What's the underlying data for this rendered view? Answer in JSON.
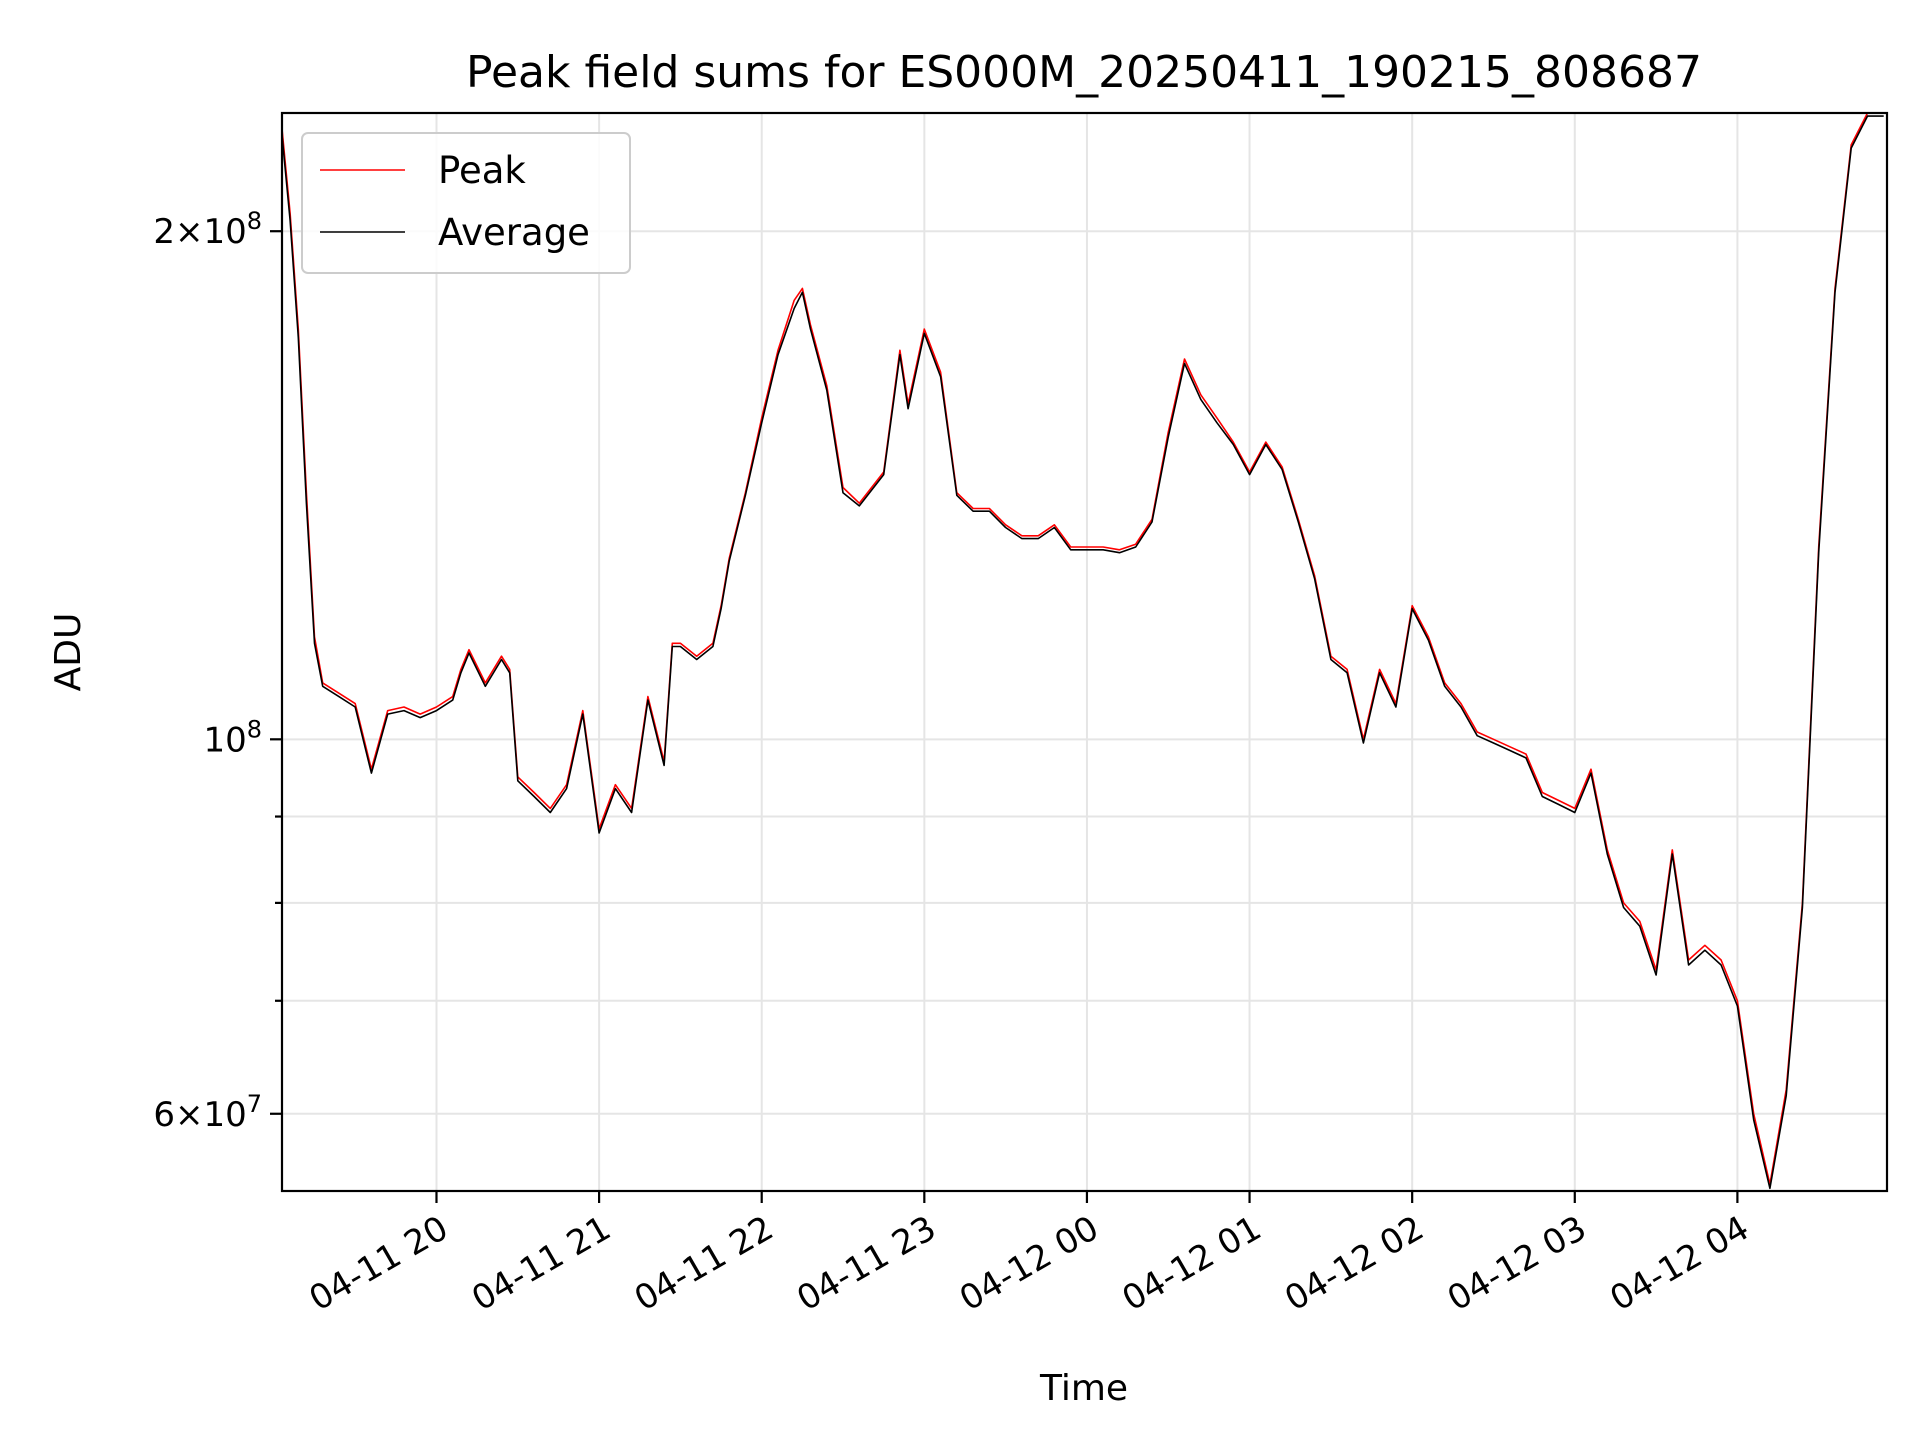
{
  "chart_data": {
    "type": "line",
    "title": "Peak field sums for ES000M_20250411_190215_808687",
    "xlabel": "Time",
    "ylabel": "ADU",
    "yscale": "log",
    "ylim": [
      54000000,
      235000000
    ],
    "xlim_hours": [
      19.05,
      28.92
    ],
    "x_ticks": [
      {
        "hour": 20,
        "label": "04-11 20"
      },
      {
        "hour": 21,
        "label": "04-11 21"
      },
      {
        "hour": 22,
        "label": "04-11 22"
      },
      {
        "hour": 23,
        "label": "04-11 23"
      },
      {
        "hour": 24,
        "label": "04-12 00"
      },
      {
        "hour": 25,
        "label": "04-12 01"
      },
      {
        "hour": 26,
        "label": "04-12 02"
      },
      {
        "hour": 27,
        "label": "04-12 03"
      },
      {
        "hour": 28,
        "label": "04-12 04"
      }
    ],
    "y_major_ticks": [
      {
        "value": 60000000,
        "base": "6",
        "exp": "7",
        "mult": true
      },
      {
        "value": 100000000,
        "base": "10",
        "exp": "8",
        "mult": false
      },
      {
        "value": 200000000,
        "base": "2",
        "exp": "8",
        "mult": true
      }
    ],
    "y_minor_ticks": [
      70000000,
      80000000,
      90000000
    ],
    "grid": true,
    "legend_position": "top-left",
    "x_hours": [
      19.05,
      19.1,
      19.15,
      19.2,
      19.25,
      19.3,
      19.4,
      19.5,
      19.6,
      19.7,
      19.8,
      19.9,
      20.0,
      20.1,
      20.15,
      20.2,
      20.3,
      20.4,
      20.45,
      20.5,
      20.6,
      20.7,
      20.8,
      20.9,
      21.0,
      21.1,
      21.2,
      21.3,
      21.4,
      21.45,
      21.5,
      21.6,
      21.7,
      21.75,
      21.8,
      21.9,
      22.0,
      22.1,
      22.2,
      22.25,
      22.3,
      22.4,
      22.5,
      22.6,
      22.75,
      22.85,
      22.9,
      23.0,
      23.1,
      23.2,
      23.3,
      23.4,
      23.5,
      23.6,
      23.7,
      23.8,
      23.9,
      24.0,
      24.1,
      24.2,
      24.3,
      24.4,
      24.5,
      24.6,
      24.7,
      24.8,
      24.9,
      25.0,
      25.1,
      25.2,
      25.3,
      25.4,
      25.5,
      25.6,
      25.7,
      25.8,
      25.9,
      26.0,
      26.1,
      26.2,
      26.3,
      26.4,
      26.5,
      26.6,
      26.7,
      26.8,
      26.9,
      27.0,
      27.1,
      27.2,
      27.3,
      27.4,
      27.5,
      27.6,
      27.7,
      27.8,
      27.9,
      28.0,
      28.1,
      28.2,
      28.3,
      28.4,
      28.5,
      28.6,
      28.7,
      28.8,
      28.9,
      28.92
    ],
    "series": [
      {
        "name": "Peak",
        "color": "#ff0000",
        "values": [
          230000000,
          205000000,
          175000000,
          140000000,
          115000000,
          108000000,
          106500000,
          105000000,
          96000000,
          104000000,
          104500000,
          103500000,
          104500000,
          106000000,
          110000000,
          113000000,
          108000000,
          112000000,
          110000000,
          95000000,
          93000000,
          91000000,
          94000000,
          104000000,
          88500000,
          94000000,
          91000000,
          106000000,
          97000000,
          114000000,
          114000000,
          112000000,
          114000000,
          120000000,
          128000000,
          140000000,
          155000000,
          170000000,
          182000000,
          185000000,
          176000000,
          162000000,
          141000000,
          138000000,
          144000000,
          170000000,
          158000000,
          175000000,
          165000000,
          140000000,
          137000000,
          137000000,
          134000000,
          132000000,
          132000000,
          134000000,
          130000000,
          130000000,
          130000000,
          129500000,
          130500000,
          135000000,
          152000000,
          168000000,
          160000000,
          155000000,
          150000000,
          144000000,
          150000000,
          145000000,
          135000000,
          125000000,
          112000000,
          110000000,
          100000000,
          110000000,
          105000000,
          120000000,
          115000000,
          108000000,
          105000000,
          101000000,
          100000000,
          99000000,
          98000000,
          93000000,
          92000000,
          91000000,
          96000000,
          86000000,
          80000000,
          78000000,
          73000000,
          86000000,
          74000000,
          75500000,
          74000000,
          70000000,
          60000000,
          54500000,
          62000000,
          80000000,
          130000000,
          185000000,
          225000000,
          235000000,
          235000000
        ]
      },
      {
        "name": "Average",
        "color": "#000000",
        "values": [
          228000000,
          203000000,
          173000000,
          138000000,
          114000000,
          107500000,
          106000000,
          104500000,
          95500000,
          103500000,
          104000000,
          103000000,
          104000000,
          105500000,
          109500000,
          112500000,
          107500000,
          111500000,
          109500000,
          94500000,
          92500000,
          90500000,
          93500000,
          103500000,
          88000000,
          93500000,
          90500000,
          105500000,
          96500000,
          113500000,
          113500000,
          111500000,
          113500000,
          119500000,
          127500000,
          139500000,
          154000000,
          169000000,
          180000000,
          184000000,
          175000000,
          161000000,
          140000000,
          137500000,
          143500000,
          169000000,
          157000000,
          174000000,
          164000000,
          139500000,
          136500000,
          136500000,
          133500000,
          131500000,
          131500000,
          133500000,
          129500000,
          129500000,
          129500000,
          129000000,
          130000000,
          134500000,
          151000000,
          167000000,
          159000000,
          154000000,
          149500000,
          143500000,
          149500000,
          144500000,
          134500000,
          124500000,
          111500000,
          109500000,
          99500000,
          109500000,
          104500000,
          119500000,
          114500000,
          107500000,
          104500000,
          100500000,
          99500000,
          98500000,
          97500000,
          92500000,
          91500000,
          90500000,
          95500000,
          85500000,
          79500000,
          77500000,
          72500000,
          85500000,
          73500000,
          75000000,
          73500000,
          69500000,
          59500000,
          54200000,
          61500000,
          79500000,
          129000000,
          184000000,
          224000000,
          234000000,
          234000000
        ]
      }
    ]
  }
}
